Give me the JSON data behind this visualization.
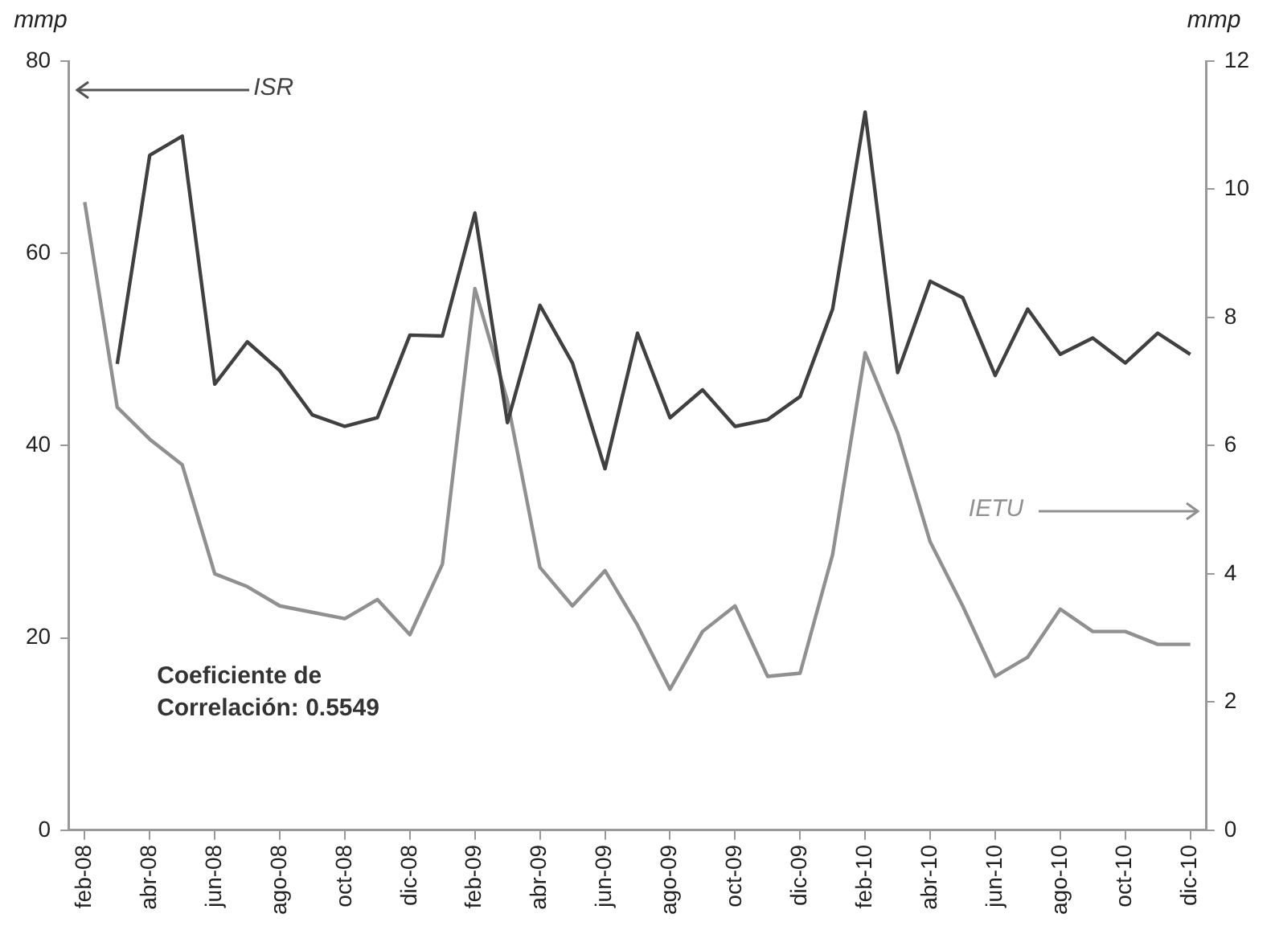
{
  "chart_data": {
    "type": "line",
    "ylabel": "mmp",
    "y2label": "mmp",
    "categories": [
      "feb-08",
      null,
      "abr-08",
      null,
      "jun-08",
      null,
      "ago-08",
      null,
      "oct-08",
      null,
      "dic-08",
      null,
      "feb-09",
      null,
      "abr-09",
      null,
      "jun-09",
      null,
      "ago-09",
      null,
      "oct-09",
      null,
      "dic-09",
      null,
      "feb-10",
      null,
      "abr-10",
      null,
      "jun-10",
      null,
      "ago-10",
      null,
      "oct-10",
      null,
      "dic-10"
    ],
    "series": [
      {
        "name": "ISR",
        "color": "#404040",
        "axis": "y",
        "values": [
          null,
          48.5,
          70.2,
          72.2,
          46.4,
          50.8,
          47.8,
          43.2,
          42,
          42.9,
          51.5,
          51.4,
          64.2,
          42.4,
          54.6,
          48.6,
          37.6,
          51.7,
          42.9,
          45.8,
          42,
          42.7,
          45.1,
          54.2,
          74.7,
          47.6,
          57.1,
          55.4,
          47.3,
          54.2,
          49.5,
          51.2,
          48.6,
          51.7,
          49.5
        ]
      },
      {
        "name": "IETU",
        "color": "#909090",
        "axis": "y2",
        "values": [
          9.8,
          6.6,
          6.1,
          5.7,
          4.0,
          3.8,
          3.5,
          3.4,
          3.3,
          3.6,
          3.05,
          4.15,
          8.45,
          6.7,
          4.1,
          3.5,
          4.05,
          3.2,
          2.2,
          3.1,
          3.5,
          2.4,
          2.45,
          4.3,
          7.45,
          6.2,
          4.5,
          3.5,
          2.4,
          2.7,
          3.45,
          3.1,
          3.1,
          2.9,
          2.9
        ]
      }
    ],
    "ylim": [
      0,
      80
    ],
    "yticks": [
      0,
      20,
      40,
      60,
      80
    ],
    "y2lim": [
      0,
      12
    ],
    "y2ticks": [
      0,
      2,
      4,
      6,
      8,
      10,
      12
    ],
    "grid": false,
    "legend": false,
    "marker": "none",
    "line_style": "solid",
    "annotations": [
      "Coeficiente de Correlación: 0.5549"
    ]
  }
}
